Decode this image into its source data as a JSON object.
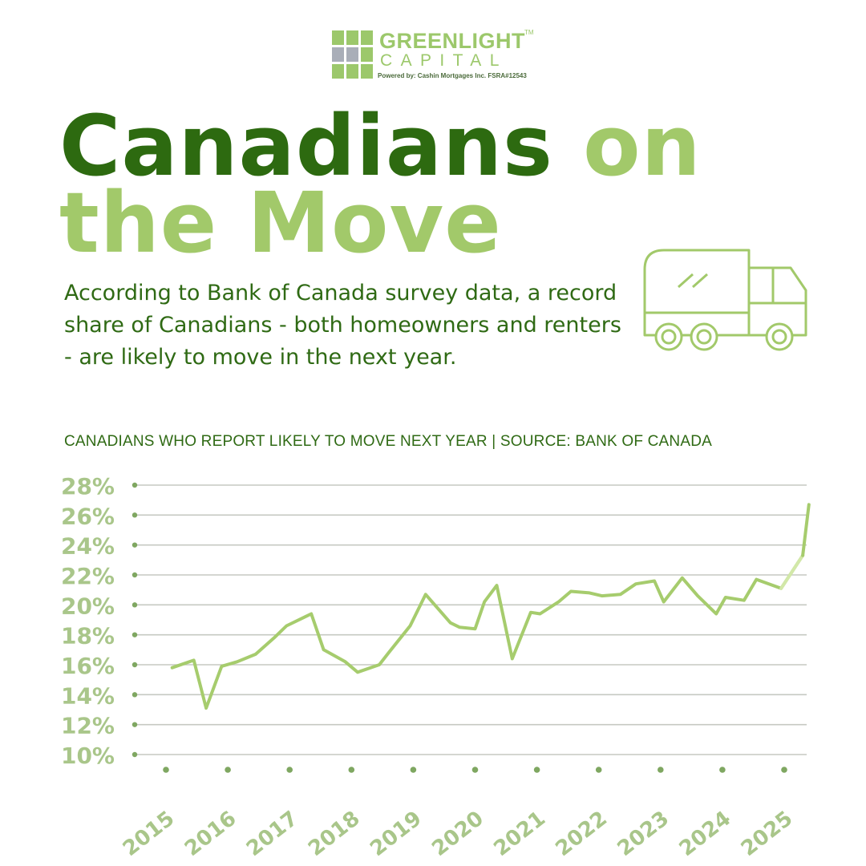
{
  "logo": {
    "name_line1": "GREENLIGHT",
    "trademark": "TM",
    "name_line2": "CAPITAL",
    "powered_by": "Powered by:  Cashin Mortgages Inc.  FSRA#12543"
  },
  "title": {
    "word1": "Canadians",
    "word2": "on",
    "word3": "the",
    "word4": "Move"
  },
  "intro_text": "According to Bank of Canada survey data, a record share of Canadians - both homeowners and renters - are likely to move in the next year.",
  "icons": [
    "truck-icon"
  ],
  "colors": {
    "dark_green": "#2d6a10",
    "light_green": "#a2c96a",
    "line": "#a6cc6d",
    "line_latest": "#d2e8a8",
    "grid": "#c6c9c2",
    "tick_label": "#a9c68a",
    "dot": "#7fa761"
  },
  "chart_data": {
    "type": "line",
    "subtitle": "CANADIANS WHO REPORT LIKELY TO MOVE NEXT YEAR | SOURCE: BANK OF CANADA",
    "y_ticks": [
      "28%",
      "26%",
      "24%",
      "22%",
      "20%",
      "18%",
      "16%",
      "14%",
      "12%",
      "10%"
    ],
    "ylim": [
      10,
      28
    ],
    "x_ticks": [
      "2015",
      "2016",
      "2017",
      "2018",
      "2019",
      "2020",
      "2021",
      "2022",
      "2023",
      "2024",
      "2025"
    ],
    "xlim": [
      2015,
      2025.3
    ],
    "grid": true,
    "series": [
      {
        "x": [
          2015.1,
          2015.45,
          2015.65,
          2015.9,
          2016.15,
          2016.45,
          2016.75,
          2016.95,
          2017.35,
          2017.55,
          2017.9,
          2018.1,
          2018.45,
          2018.6,
          2018.95,
          2019.2,
          2019.6,
          2019.75,
          2020.0,
          2020.15,
          2020.35,
          2020.6,
          2020.9,
          2021.05,
          2021.35,
          2021.55,
          2021.85,
          2022.05,
          2022.35,
          2022.6,
          2022.9,
          2023.05,
          2023.35,
          2023.6,
          2023.9,
          2024.05,
          2024.35,
          2024.55,
          2024.95,
          2025.3
        ],
        "values": [
          15.8,
          16.3,
          13.1,
          15.9,
          16.2,
          16.7,
          17.8,
          18.6,
          19.4,
          17.0,
          16.2,
          15.5,
          16.0,
          16.8,
          18.6,
          20.7,
          18.8,
          18.5,
          18.4,
          20.2,
          21.3,
          16.4,
          19.5,
          19.4,
          20.2,
          20.9,
          20.8,
          20.6,
          20.7,
          21.4,
          21.6,
          20.2,
          21.8,
          20.6,
          19.4,
          20.5,
          20.3,
          21.7,
          21.1,
          23.3
        ]
      },
      {
        "x": [
          2024.95,
          2025.3
        ],
        "values": [
          21.1,
          23.3
        ]
      },
      {
        "x": [
          2025.3,
          2025.4
        ],
        "values": [
          23.3,
          26.7
        ]
      }
    ]
  }
}
